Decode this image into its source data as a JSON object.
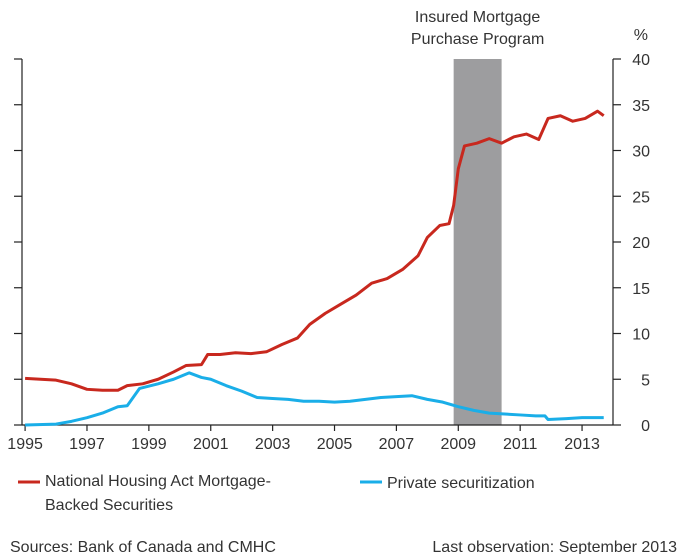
{
  "chart_data": {
    "type": "line",
    "annotation": "Insured Mortgage Purchase Program",
    "shaded_region": [
      2008.85,
      2010.4
    ],
    "y_unit": "%",
    "xlim": [
      1994.9,
      2014.0
    ],
    "xticks": [
      1995,
      1997,
      1999,
      2001,
      2003,
      2005,
      2007,
      2009,
      2011,
      2013
    ],
    "ylim": [
      0,
      40
    ],
    "yticks": [
      0,
      5,
      10,
      15,
      20,
      25,
      30,
      35,
      40
    ],
    "series": [
      {
        "name": "National Housing Act Mortgage-Backed Securities",
        "color": "#c8281e",
        "x": [
          1995.0,
          1995.5,
          1996.0,
          1996.5,
          1997.0,
          1997.5,
          1998.0,
          1998.3,
          1998.8,
          1999.3,
          1999.8,
          2000.2,
          2000.7,
          2000.9,
          2001.3,
          2001.8,
          2002.3,
          2002.8,
          2003.3,
          2003.8,
          2004.2,
          2004.7,
          2005.2,
          2005.7,
          2006.2,
          2006.7,
          2007.2,
          2007.7,
          2008.0,
          2008.4,
          2008.7,
          2008.85,
          2009.0,
          2009.2,
          2009.6,
          2010.0,
          2010.4,
          2010.8,
          2011.2,
          2011.6,
          2011.9,
          2012.3,
          2012.7,
          2013.1,
          2013.5,
          2013.7
        ],
        "values": [
          5.1,
          5.0,
          4.9,
          4.5,
          3.9,
          3.8,
          3.8,
          4.3,
          4.5,
          5.0,
          5.8,
          6.5,
          6.6,
          7.7,
          7.7,
          7.9,
          7.8,
          8.0,
          8.8,
          9.5,
          11.0,
          12.2,
          13.2,
          14.2,
          15.5,
          16.0,
          17.0,
          18.5,
          20.5,
          21.8,
          22.0,
          24.0,
          28.0,
          30.5,
          30.8,
          31.3,
          30.8,
          31.5,
          31.8,
          31.2,
          33.5,
          33.8,
          33.2,
          33.5,
          34.3,
          33.8
        ]
      },
      {
        "name": "Private securitization",
        "color": "#1aaee8",
        "x": [
          1995.0,
          1996.0,
          1996.5,
          1997.0,
          1997.5,
          1998.0,
          1998.3,
          1998.7,
          1999.3,
          1999.8,
          2000.3,
          2000.7,
          2001.0,
          2001.5,
          2002.0,
          2002.5,
          2003.0,
          2003.5,
          2004.0,
          2004.5,
          2005.0,
          2005.5,
          2006.0,
          2006.5,
          2007.0,
          2007.5,
          2008.0,
          2008.5,
          2009.0,
          2009.5,
          2010.0,
          2010.5,
          2011.0,
          2011.5,
          2011.8,
          2011.9,
          2012.5,
          2013.0,
          2013.7
        ],
        "values": [
          0,
          0.1,
          0.4,
          0.8,
          1.3,
          2.0,
          2.1,
          4.0,
          4.5,
          5.0,
          5.7,
          5.2,
          5.0,
          4.3,
          3.7,
          3.0,
          2.9,
          2.8,
          2.6,
          2.6,
          2.5,
          2.6,
          2.8,
          3.0,
          3.1,
          3.2,
          2.8,
          2.5,
          2.0,
          1.6,
          1.3,
          1.2,
          1.1,
          1.0,
          1.0,
          0.6,
          0.7,
          0.8,
          0.8
        ]
      }
    ],
    "source": "Sources: Bank of Canada and CMHC",
    "note": "Last observation: September 2013"
  }
}
